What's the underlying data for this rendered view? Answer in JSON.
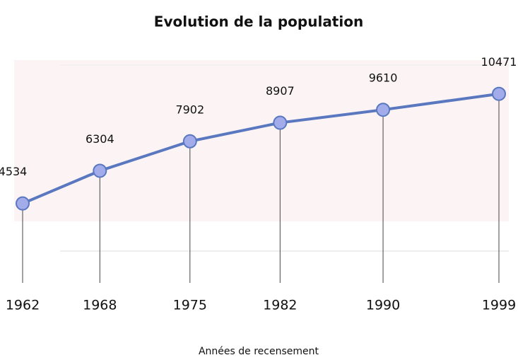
{
  "chart_data": {
    "type": "line",
    "title": "Evolution de la population",
    "x_label": "Années de recensement",
    "x": [
      1962,
      1968,
      1975,
      1982,
      1990,
      1999
    ],
    "series": [
      {
        "name": "Population",
        "color": "#5a78c0",
        "values": [
          4534,
          6304,
          7902,
          8907,
          9610,
          10471
        ]
      }
    ],
    "xlim": [
      1962,
      1999
    ],
    "xticks": [
      1962,
      1968,
      1975,
      1982,
      1990,
      1999
    ],
    "ylim": [
      0,
      12300
    ]
  }
}
